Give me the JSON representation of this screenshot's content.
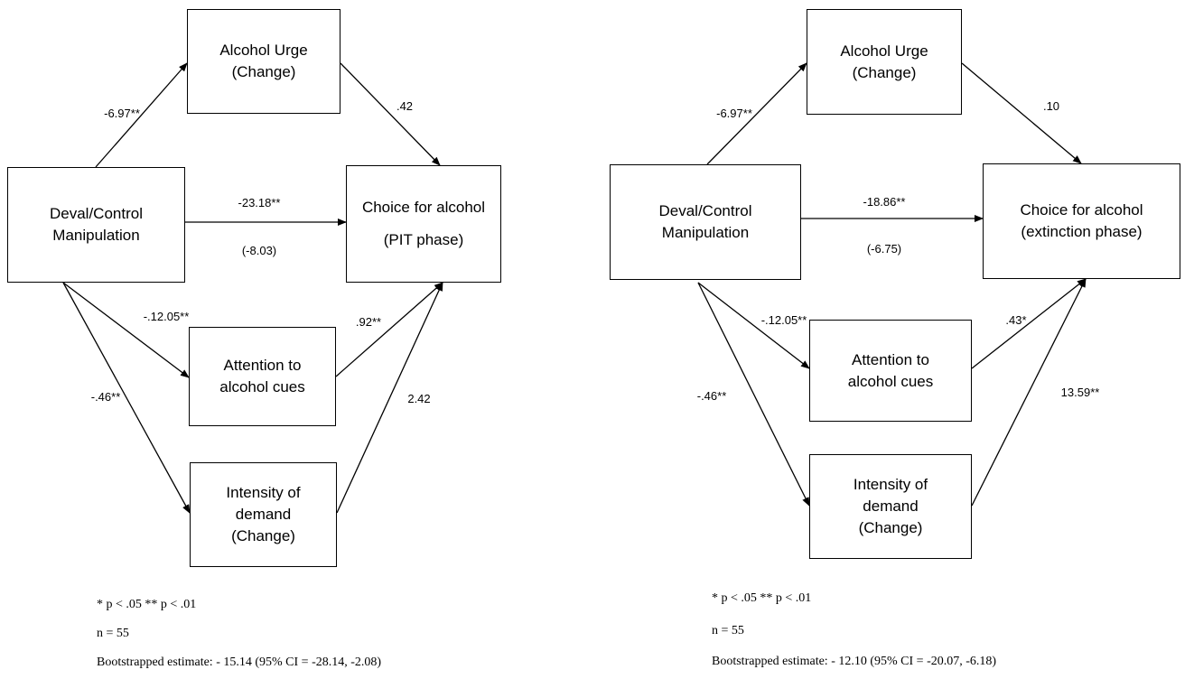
{
  "panels": {
    "left": {
      "boxes": {
        "urge": [
          "Alcohol Urge",
          "(Change)"
        ],
        "manip": [
          "Deval/Control",
          "Manipulation"
        ],
        "choice": [
          "Choice for alcohol",
          "(PIT phase)"
        ],
        "attention": [
          "Attention to",
          "alcohol cues"
        ],
        "demand": [
          "Intensity of",
          "demand",
          "(Change)"
        ]
      },
      "paths": {
        "manip_urge": "-6.97**",
        "urge_choice": ".42",
        "manip_choice_total": "-23.18**",
        "manip_choice_direct": "(-8.03)",
        "manip_attention": "-.12.05**",
        "attention_choice": ".92**",
        "manip_demand": "-.46**",
        "demand_choice": "2.42"
      },
      "notes": {
        "significance": "* p < .05 ** p < .01",
        "n": "n = 55",
        "bootstrap": "Bootstrapped estimate: - 15.14 (95% CI = -28.14, -2.08)"
      }
    },
    "right": {
      "boxes": {
        "urge": [
          "Alcohol Urge",
          "(Change)"
        ],
        "manip": [
          "Deval/Control",
          "Manipulation"
        ],
        "choice": [
          "Choice for alcohol",
          "(extinction phase)"
        ],
        "attention": [
          "Attention to",
          "alcohol cues"
        ],
        "demand": [
          "Intensity of",
          "demand",
          "(Change)"
        ]
      },
      "paths": {
        "manip_urge": "-6.97**",
        "urge_choice": ".10",
        "manip_choice_total": "-18.86**",
        "manip_choice_direct": "(-6.75)",
        "manip_attention": "-.12.05**",
        "attention_choice": ".43*",
        "manip_demand": "-.46**",
        "demand_choice": "13.59**"
      },
      "notes": {
        "significance": "* p < .05 ** p < .01",
        "n": "n = 55",
        "bootstrap": "Bootstrapped estimate: - 12.10 (95% CI = -20.07, -6.18)"
      }
    }
  }
}
